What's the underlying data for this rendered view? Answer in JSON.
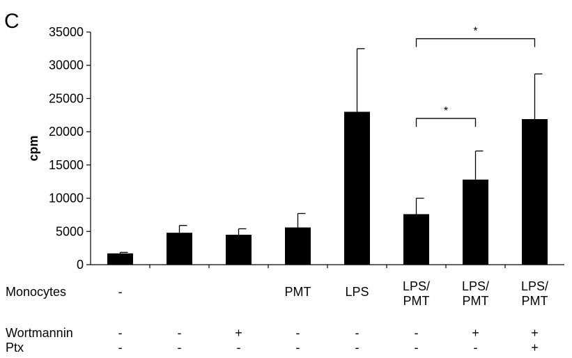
{
  "chart_data": {
    "type": "bar",
    "panel_label": "C",
    "title": "",
    "xlabel": "",
    "ylabel": "cpm",
    "ylim": [
      0,
      35000
    ],
    "yticks": [
      0,
      5000,
      10000,
      15000,
      20000,
      25000,
      30000,
      35000
    ],
    "grid": false,
    "legend": "none",
    "bar_color": "#000000",
    "values": [
      1700,
      4800,
      4500,
      5600,
      23000,
      7600,
      12800,
      21900
    ],
    "error_upper": [
      1850,
      5900,
      5400,
      7700,
      32500,
      10000,
      17100,
      28700
    ],
    "rows": [
      {
        "label": "Monocytes",
        "values": [
          "-",
          "",
          "",
          "PMT",
          "LPS",
          "LPS/\nPMT",
          "LPS/\nPMT",
          "LPS/\nPMT"
        ]
      },
      {
        "label": "Wortmannin",
        "values": [
          "-",
          "-",
          "+",
          "-",
          "-",
          "-",
          "+",
          "+"
        ]
      },
      {
        "label": "Ptx",
        "values": [
          "-",
          "-",
          "-",
          "-",
          "-",
          "-",
          "-",
          "+"
        ]
      }
    ],
    "significance": [
      {
        "from": 5,
        "to": 7,
        "level": 34000,
        "label": "*"
      },
      {
        "from": 5,
        "to": 6,
        "level": 22000,
        "label": "*"
      }
    ]
  }
}
